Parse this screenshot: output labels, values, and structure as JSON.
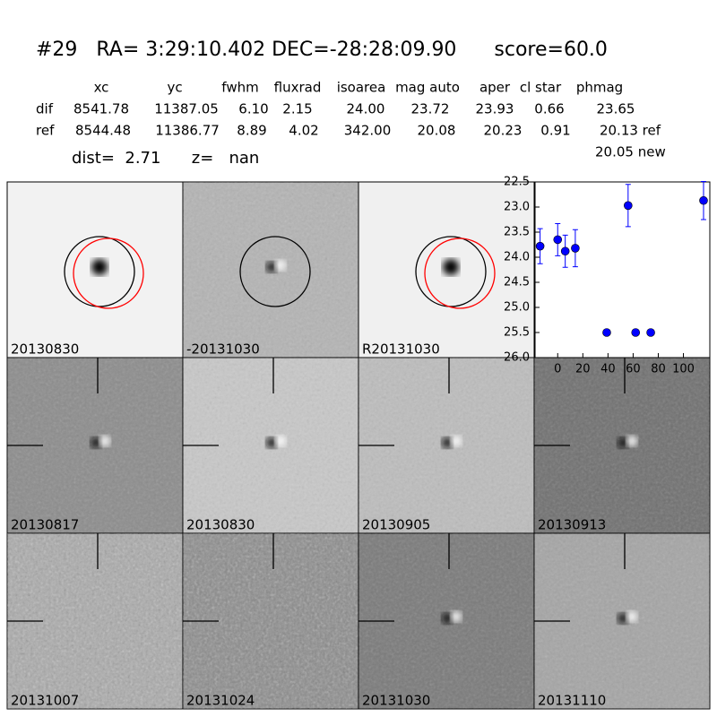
{
  "header": {
    "title": "#29   RA= 3:29:10.402 DEC=-28:28:09.90      score=60.0"
  },
  "table": {
    "columns": [
      "xc",
      "yc",
      "fwhm",
      "fluxrad",
      "isoarea",
      "mag auto",
      "aper",
      "cl star",
      "phmag"
    ],
    "rows": [
      [
        "dif",
        "8541.78",
        "11387.05",
        "6.10",
        "2.15",
        "24.00",
        "23.72",
        "23.93",
        "0.66",
        "23.65"
      ],
      [
        "ref",
        "8544.48",
        "11386.77",
        "8.89",
        "4.02",
        "342.00",
        "20.08",
        "20.23",
        "0.91",
        "20.13 ref"
      ]
    ],
    "extra": "20.05 new",
    "summary": "dist=  2.71      z=   nan"
  },
  "stamps": [
    {
      "label": "20130830",
      "color": "#000000"
    },
    {
      "label": "-20131030",
      "color": "#000000"
    },
    {
      "label": "R20131030",
      "color": "#000000"
    },
    {
      "label": "20130817",
      "color": "#000000"
    },
    {
      "label": "20130830",
      "color": "#ff0000"
    },
    {
      "label": "20130905",
      "color": "#000000"
    },
    {
      "label": "20130913",
      "color": "#000000"
    },
    {
      "label": "20131007",
      "color": "#000000"
    },
    {
      "label": "20131024",
      "color": "#000000"
    },
    {
      "label": "20131030",
      "color": "#000000"
    },
    {
      "label": "20131110",
      "color": "#000000"
    }
  ],
  "chart_data": {
    "type": "scatter",
    "x": [
      -14,
      0,
      6,
      14,
      39,
      56,
      62,
      74,
      116
    ],
    "series": [
      {
        "color": "#0000ff",
        "values": [
          23.78,
          23.65,
          23.88,
          23.82,
          25.5,
          22.97,
          25.5,
          25.5,
          22.87
        ],
        "errors": [
          0.35,
          0.32,
          0.32,
          0.37,
          null,
          0.42,
          null,
          null,
          0.38
        ]
      }
    ],
    "xlim": [
      -18,
      121
    ],
    "xticks": [
      0,
      20,
      40,
      60,
      80,
      100
    ],
    "ylim": [
      26.0,
      22.5
    ],
    "yticks": [
      22.5,
      {
        "value": 23.0,
        "label": "23.0"
      },
      23.5,
      {
        "value": 24.0,
        "label": "24.0"
      },
      24.5,
      {
        "value": 25.0,
        "label": "25.0"
      },
      25.5,
      {
        "value": 26.0,
        "label": "26.0"
      }
    ]
  }
}
